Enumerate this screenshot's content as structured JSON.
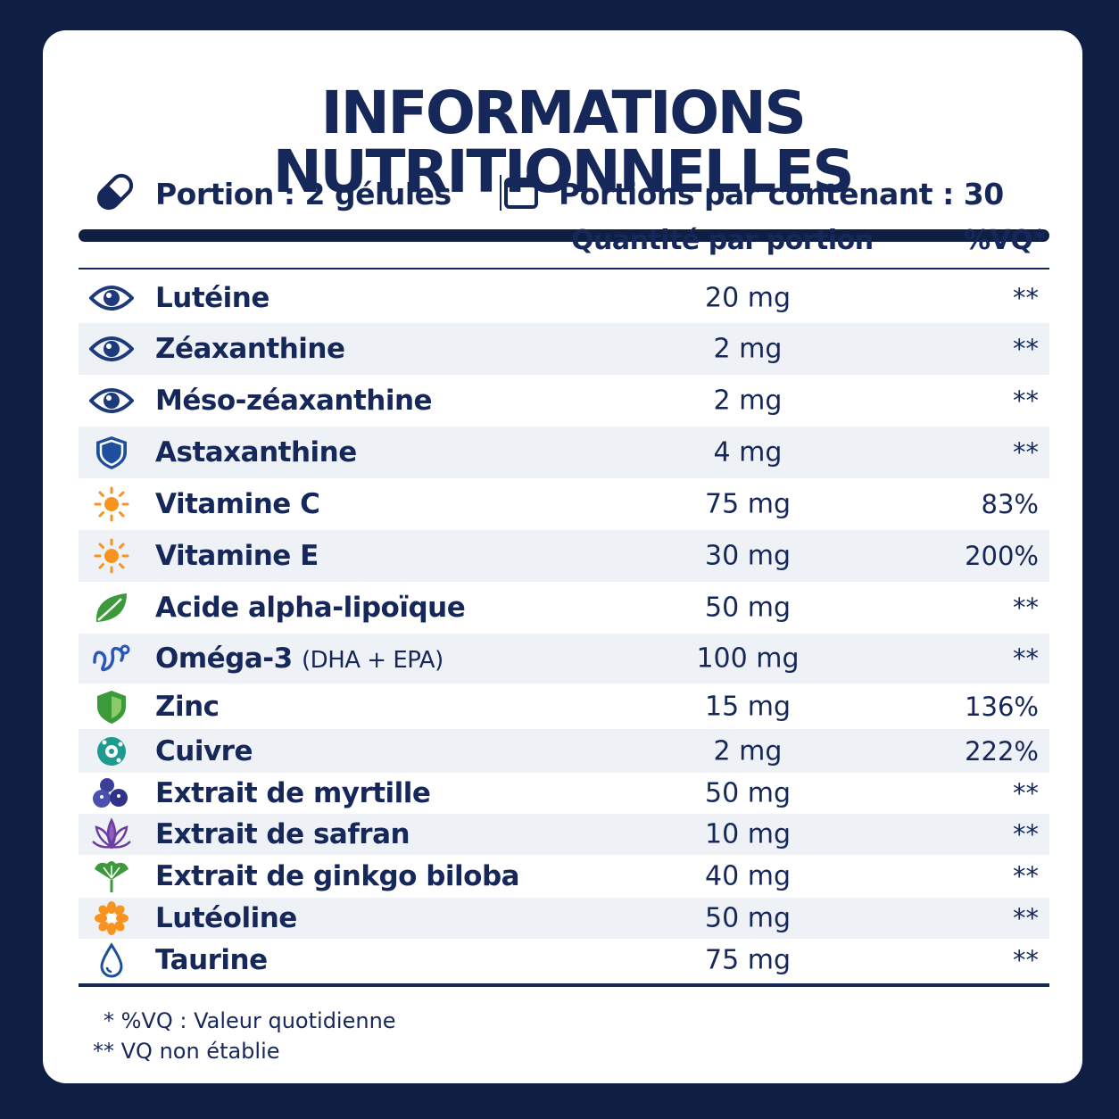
{
  "title": "INFORMATIONS NUTRITIONNELLES",
  "serving": {
    "portion": "Portion : 2 gélules",
    "per_container": "Portions par contenant : 30"
  },
  "columns": {
    "amount": "Quantité par portion",
    "dv": "%VQ*"
  },
  "rows": [
    {
      "name": "Lutéine",
      "amount": "20 mg",
      "dv": "**",
      "icon": "eye-icon"
    },
    {
      "name": "Zéaxanthine",
      "amount": "2 mg",
      "dv": "**",
      "icon": "eye-icon"
    },
    {
      "name": "Méso-zéaxanthine",
      "amount": "2 mg",
      "dv": "**",
      "icon": "eye-icon"
    },
    {
      "name": "Astaxanthine",
      "amount": "4 mg",
      "dv": "**",
      "icon": "shield-icon"
    },
    {
      "name": "Vitamine C",
      "amount": "75 mg",
      "dv": "83%",
      "icon": "sun-icon"
    },
    {
      "name": "Vitamine E",
      "amount": "30 mg",
      "dv": "200%",
      "icon": "sun-icon"
    },
    {
      "name": "Acide alpha-lipoïque",
      "amount": "50 mg",
      "dv": "**",
      "icon": "leaf-icon"
    },
    {
      "name": "Oméga-3",
      "name_sub": "(DHA + EPA)",
      "amount": "100 mg",
      "dv": "**",
      "icon": "wave-icon"
    },
    {
      "name": "Zinc",
      "amount": "15 mg",
      "dv": "136%",
      "icon": "green-shield-icon"
    },
    {
      "name": "Cuivre",
      "amount": "2 mg",
      "dv": "222%",
      "icon": "mineral-icon"
    },
    {
      "name": "Extrait de myrtille",
      "amount": "50 mg",
      "dv": "**",
      "icon": "blueberry-icon"
    },
    {
      "name": "Extrait de safran",
      "amount": "10 mg",
      "dv": "**",
      "icon": "saffron-flower-icon"
    },
    {
      "name": "Extrait de ginkgo biloba",
      "amount": "40 mg",
      "dv": "**",
      "icon": "ginkgo-leaf-icon"
    },
    {
      "name": "Lutéoline",
      "amount": "50 mg",
      "dv": "**",
      "icon": "orange-flower-icon"
    },
    {
      "name": "Taurine",
      "amount": "75 mg",
      "dv": "**",
      "icon": "drop-icon"
    }
  ],
  "footnotes": {
    "dv_note": "* %VQ : Valeur quotidienne",
    "not_established": "** VQ non établie"
  },
  "colors": {
    "navy": "#16275a",
    "background": "#0f1f44",
    "row_alt": "#eef1f6"
  }
}
